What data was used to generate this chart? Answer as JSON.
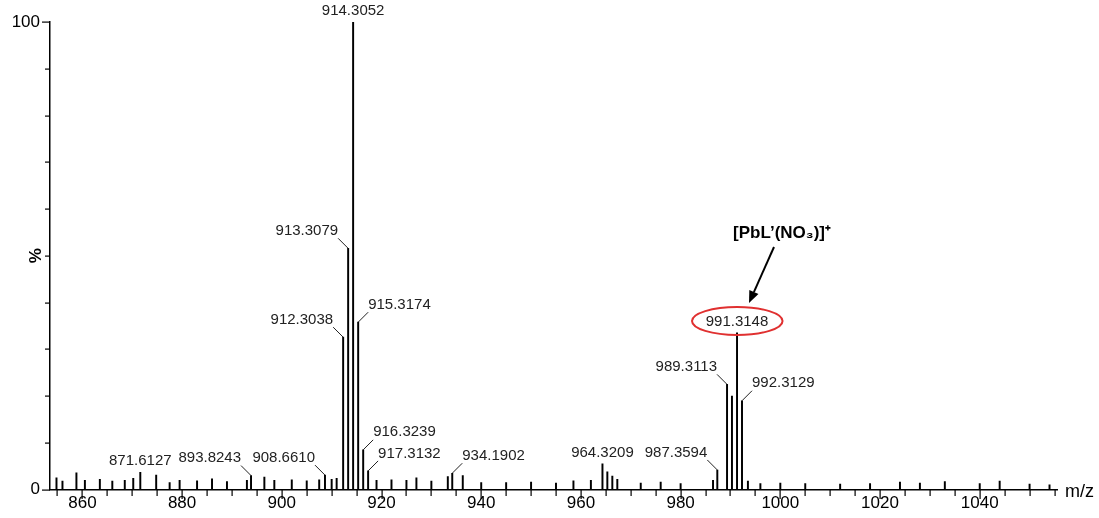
{
  "chart_data": {
    "type": "bar",
    "xlabel": "m/z",
    "ylabel": "%",
    "color": "#000000",
    "x": [
      854.8,
      856,
      858.8,
      860.5,
      863.5,
      866,
      868.5,
      870.2,
      871.6127,
      874.8,
      877.5,
      879.5,
      883,
      886,
      889,
      893,
      893.8243,
      896.5,
      898.5,
      902,
      905,
      907.5,
      908.661,
      910,
      911,
      912.3038,
      913.3079,
      914.3052,
      915.3174,
      916.3239,
      917.3132,
      919,
      922,
      925,
      927,
      930,
      933.3,
      934.1902,
      936.3,
      940,
      945,
      950,
      955,
      958.5,
      962,
      964.3209,
      965.3,
      966.3,
      967.3,
      972,
      976,
      980,
      986.5,
      987.3594,
      988.4,
      989.3113,
      990.3,
      991.3148,
      992.3129,
      993.5,
      996,
      1000,
      1005,
      1012,
      1018,
      1024,
      1028,
      1033,
      1040,
      1044,
      1050,
      1054
    ],
    "values": [
      2.5,
      1.8,
      3.6,
      2.0,
      2.2,
      1.8,
      2.0,
      2.4,
      3.7,
      3.1,
      1.5,
      2.0,
      1.9,
      2.3,
      1.7,
      2.0,
      3.0,
      2.7,
      2.0,
      2.1,
      1.9,
      2.1,
      3.1,
      2.2,
      2.4,
      32.6,
      51.6,
      100,
      35.8,
      8.5,
      4.0,
      2.0,
      2.1,
      2.0,
      2.5,
      1.8,
      2.8,
      3.5,
      3.0,
      1.5,
      1.5,
      1.6,
      1.4,
      1.9,
      2.0,
      5.5,
      3.8,
      2.9,
      2.2,
      1.4,
      1.6,
      1.3,
      2.0,
      4.2,
      null,
      22.5,
      20,
      33.5,
      19,
      1.8,
      1.3,
      1.4,
      1.3,
      1.2,
      1.3,
      1.6,
      1.4,
      1.7,
      1.3,
      1.8,
      1.2,
      1.0
    ],
    "xlim": [
      853.5,
      1055.5
    ],
    "xticks": [
      {
        "value": 855,
        "label": null
      },
      860,
      {
        "value": 865,
        "label": null
      },
      {
        "value": 870,
        "label": null
      },
      {
        "value": 875,
        "label": null
      },
      880,
      {
        "value": 885,
        "label": null
      },
      {
        "value": 890,
        "label": null
      },
      {
        "value": 895,
        "label": null
      },
      900,
      {
        "value": 905,
        "label": null
      },
      {
        "value": 910,
        "label": null
      },
      {
        "value": 915,
        "label": null
      },
      920,
      {
        "value": 925,
        "label": null
      },
      {
        "value": 930,
        "label": null
      },
      {
        "value": 935,
        "label": null
      },
      940,
      {
        "value": 945,
        "label": null
      },
      {
        "value": 950,
        "label": null
      },
      {
        "value": 955,
        "label": null
      },
      960,
      {
        "value": 965,
        "label": null
      },
      {
        "value": 970,
        "label": null
      },
      {
        "value": 975,
        "label": null
      },
      980,
      {
        "value": 985,
        "label": null
      },
      {
        "value": 990,
        "label": null
      },
      {
        "value": 995,
        "label": null
      },
      1000,
      {
        "value": 1005,
        "label": null
      },
      {
        "value": 1010,
        "label": null
      },
      {
        "value": 1015,
        "label": null
      },
      1020,
      {
        "value": 1025,
        "label": null
      },
      {
        "value": 1030,
        "label": null
      },
      {
        "value": 1035,
        "label": null
      },
      1040,
      {
        "value": 1045,
        "label": null
      },
      {
        "value": 1050,
        "label": null
      },
      {
        "value": 1055,
        "label": null
      }
    ],
    "ylim": [
      0,
      100
    ],
    "yticks": [
      0,
      {
        "value": 10,
        "label": null
      },
      {
        "value": 20,
        "label": null
      },
      {
        "value": 30,
        "label": null
      },
      {
        "value": 40,
        "label": null
      },
      {
        "value": 50,
        "label": null
      },
      {
        "value": 60,
        "label": null
      },
      {
        "value": 70,
        "label": null
      },
      {
        "value": 80,
        "label": null
      },
      {
        "value": 90,
        "label": null
      },
      100
    ],
    "annotations": [
      {
        "text": "871.6127",
        "x": 871.6127,
        "y": 3.7
      },
      {
        "text": "893.8243",
        "x": 893.8243,
        "y": 3.0
      },
      {
        "text": "908.6610",
        "x": 908.661,
        "y": 3.1
      },
      {
        "text": "912.3038",
        "x": 912.3038,
        "y": 32.6
      },
      {
        "text": "913.3079",
        "x": 913.3079,
        "y": 51.6
      },
      {
        "text": "914.3052",
        "x": 914.3052,
        "y": 100
      },
      {
        "text": "915.3174",
        "x": 915.3174,
        "y": 35.8
      },
      {
        "text": "916.3239",
        "x": 916.3239,
        "y": 8.5
      },
      {
        "text": "917.3132",
        "x": 917.3132,
        "y": 4.0
      },
      {
        "text": "934.1902",
        "x": 934.1902,
        "y": 3.5
      },
      {
        "text": "964.3209",
        "x": 964.3209,
        "y": 5.5
      },
      {
        "text": "987.3594",
        "x": 987.3594,
        "y": 4.2
      },
      {
        "text": "989.3113",
        "x": 989.3113,
        "y": 22.5
      },
      {
        "text": "991.3148",
        "x": 991.3148,
        "y": 33.5
      },
      {
        "text": "992.3129",
        "x": 992.3129,
        "y": 19
      },
      "[PbL’(NO₃)]⁺"
    ]
  }
}
